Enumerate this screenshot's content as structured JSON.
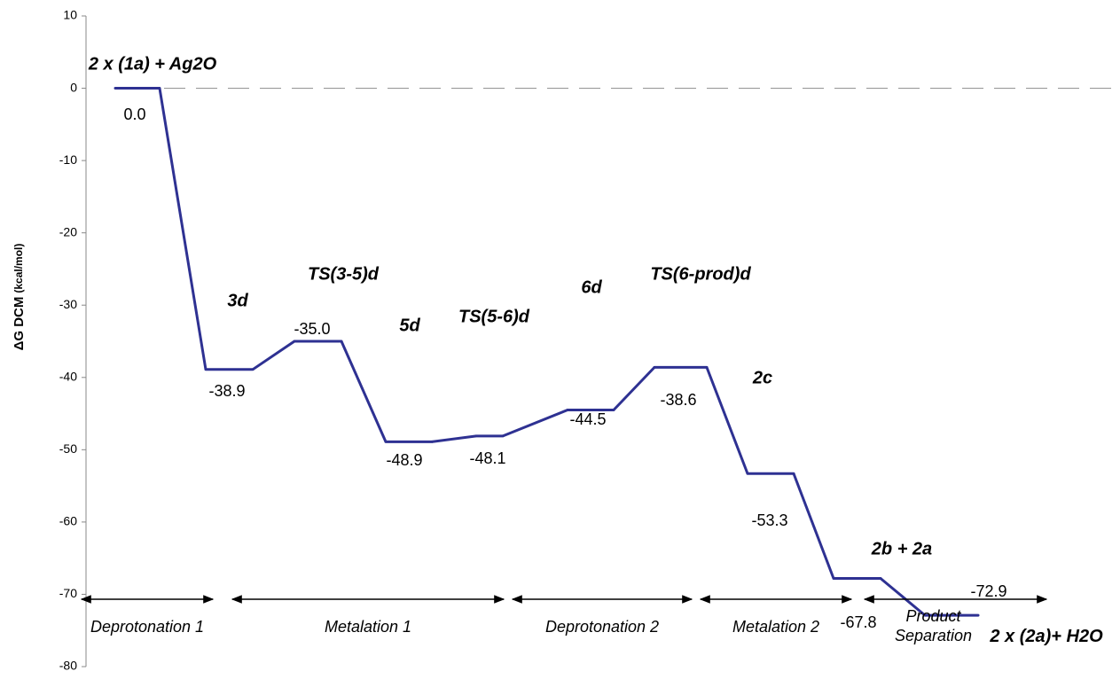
{
  "chart_data": {
    "type": "energy-profile",
    "ylabel": "ΔG DCM",
    "ylabel_unit": "(kcal/mol)",
    "categories": [
      "2 x (1a) + Ag2O",
      "3d",
      "TS(3-5)d",
      "5d",
      "TS(5-6)d",
      "6d",
      "TS(6-prod)d",
      "2c",
      "2b + 2a",
      "2 x (2a)+ H2O"
    ],
    "values": [
      0,
      -38.9,
      -35,
      -48.9,
      -48.1,
      -44.5,
      -38.6,
      -53.3,
      -67.8,
      -72.9
    ],
    "value_labels": [
      "0.0",
      "-38.9",
      "-35.0",
      "-48.9",
      "-48.1",
      "-44.5",
      "-38.6",
      "-53.3",
      "-67.8",
      "-72.9"
    ],
    "color": "#2e3192",
    "ylim": [
      -80,
      10
    ],
    "yticks": [
      -80,
      -70,
      -60,
      -50,
      -40,
      -30,
      -20,
      -10,
      0,
      10
    ],
    "phases": [
      "Deprotonation 1",
      "Metalation 1",
      "Deprotonation 2",
      "Metalation 2",
      "Product Separation"
    ]
  }
}
